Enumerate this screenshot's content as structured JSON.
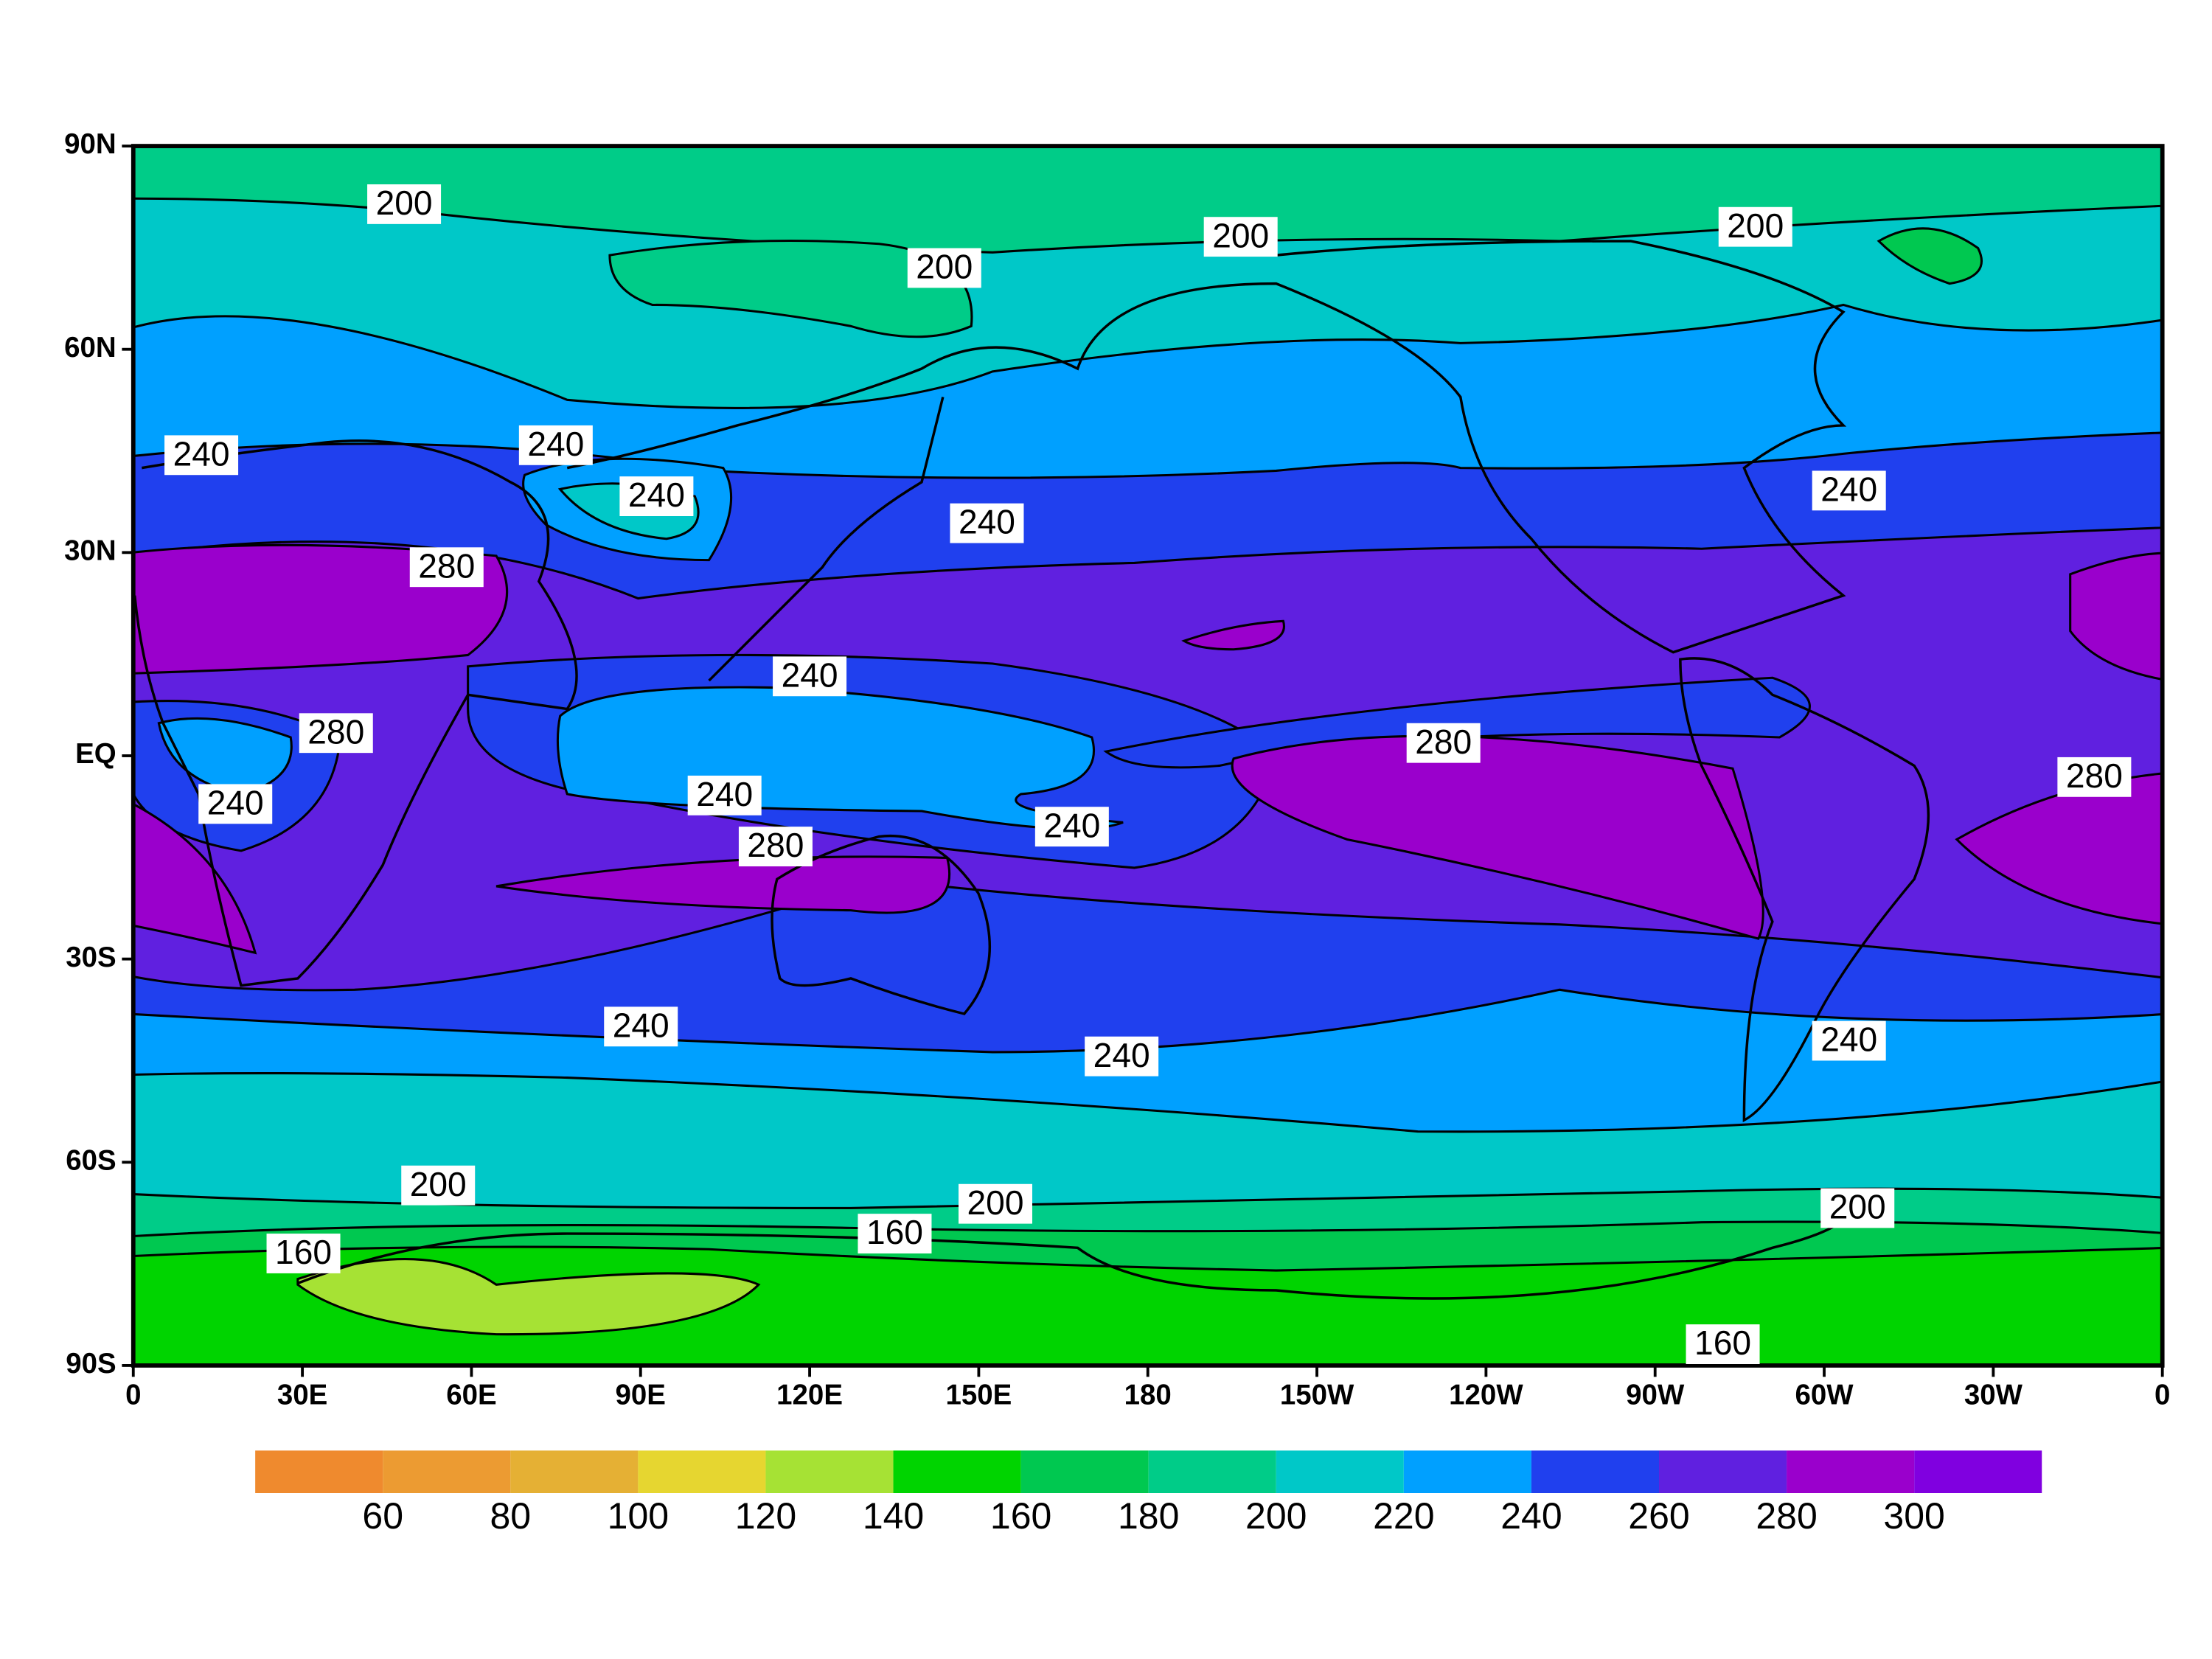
{
  "map": {
    "xlim": [
      0,
      360
    ],
    "xticks": [
      0,
      {
        "value": 30,
        "label": "30E"
      },
      {
        "value": 60,
        "label": "60E"
      },
      {
        "value": 90,
        "label": "90E"
      },
      {
        "value": 120,
        "label": "120E"
      },
      {
        "value": 150,
        "label": "150E"
      },
      180,
      {
        "value": 210,
        "label": "150W"
      },
      {
        "value": 240,
        "label": "120W"
      },
      {
        "value": 270,
        "label": "90W"
      },
      {
        "value": 300,
        "label": "60W"
      },
      {
        "value": 330,
        "label": "30W"
      },
      {
        "value": 360,
        "label": "0"
      }
    ],
    "ylim": [
      -90,
      90
    ],
    "yticks": [
      {
        "value": 90,
        "label": "90N"
      },
      {
        "value": 60,
        "label": "60N"
      },
      {
        "value": 30,
        "label": "30N"
      },
      {
        "value": 0,
        "label": "EQ"
      },
      {
        "value": -30,
        "label": "30S"
      },
      {
        "value": -60,
        "label": "60S"
      },
      {
        "value": -90,
        "label": "90S"
      }
    ],
    "contour_labels": [
      200,
      200,
      200,
      200,
      240,
      240,
      240,
      280,
      240,
      240,
      240,
      280,
      240,
      240,
      280,
      240,
      280,
      280,
      240,
      240,
      240,
      200,
      200,
      200,
      160,
      160,
      160
    ]
  },
  "colorbar": {
    "levels": [
      60,
      80,
      100,
      120,
      140,
      160,
      180,
      200,
      220,
      240,
      260,
      280,
      300
    ],
    "colors": [
      "#ef8a2e",
      "#ec9b32",
      "#e5b034",
      "#e6d630",
      "#a6e234",
      "#00d400",
      "#00c850",
      "#00cc88",
      "#00c8c8",
      "#00a0ff",
      "#2040ee",
      "#6020e0",
      "#9a00cc",
      "#8000e0"
    ]
  }
}
